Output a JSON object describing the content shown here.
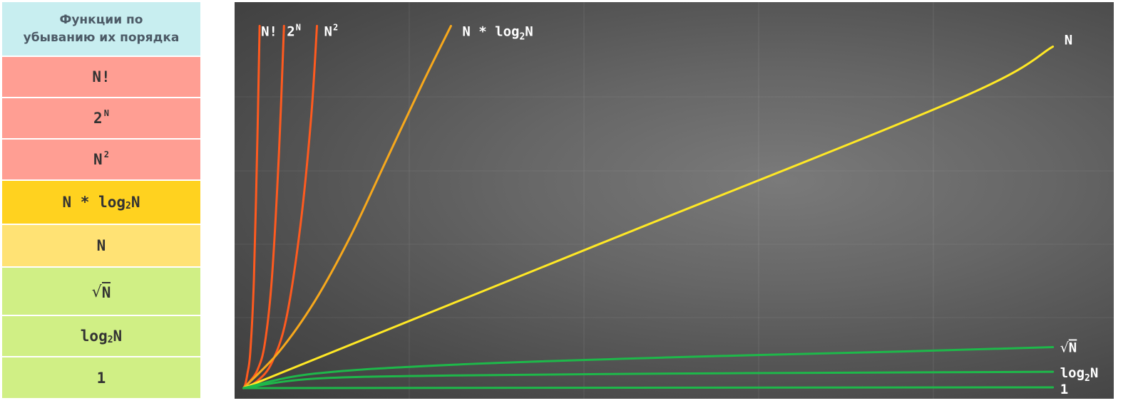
{
  "table": {
    "header": [
      "Функции по",
      "убыванию их порядка"
    ],
    "rows": [
      {
        "base": "N!",
        "sup": "",
        "sub": "",
        "tail": ""
      },
      {
        "base": "2",
        "sup": "N",
        "sub": "",
        "tail": ""
      },
      {
        "base": "N",
        "sup": "2",
        "sub": "",
        "tail": ""
      },
      {
        "base": "N * log",
        "sup": "",
        "sub": "2",
        "tail": "N"
      },
      {
        "base": "N",
        "sup": "",
        "sub": "",
        "tail": ""
      },
      {
        "base": "N",
        "sup": "",
        "sub": "",
        "tail": "",
        "sqrt": true
      },
      {
        "base": "log",
        "sup": "",
        "sub": "2",
        "tail": "N"
      },
      {
        "base": "1",
        "sup": "",
        "sub": "",
        "tail": ""
      }
    ]
  },
  "chart_data": {
    "type": "line",
    "title": "",
    "xlabel": "",
    "ylabel": "",
    "grid": true,
    "series": [
      {
        "name": "N!",
        "color": "#ff5a1f",
        "points": [
          [
            0.05,
            0.0
          ],
          [
            0.3,
            0.01
          ],
          [
            0.6,
            0.04
          ],
          [
            1.0,
            0.1
          ],
          [
            1.5,
            0.3
          ],
          [
            2.0,
            0.7
          ],
          [
            2.3,
            1.0
          ]
        ]
      },
      {
        "name": "2^N",
        "color": "#ff5a1f",
        "points": [
          [
            0.05,
            0.0
          ],
          [
            1.0,
            0.02
          ],
          [
            2.0,
            0.05
          ],
          [
            3.0,
            0.12
          ],
          [
            4.0,
            0.3
          ],
          [
            5.0,
            0.65
          ],
          [
            5.7,
            1.0
          ]
        ]
      },
      {
        "name": "N^2",
        "color": "#ff5a1f",
        "points": [
          [
            0.05,
            0.0
          ],
          [
            2.0,
            0.02
          ],
          [
            4.0,
            0.07
          ],
          [
            6.0,
            0.19
          ],
          [
            8.0,
            0.45
          ],
          [
            9.5,
            0.75
          ],
          [
            10.3,
            1.0
          ]
        ]
      },
      {
        "name": "N * log2N",
        "color": "#f7a81c",
        "points": [
          [
            0.05,
            0.0
          ],
          [
            5.0,
            0.1
          ],
          [
            10.0,
            0.24
          ],
          [
            15.0,
            0.42
          ],
          [
            20.0,
            0.63
          ],
          [
            25.0,
            0.84
          ],
          [
            29.0,
            1.0
          ]
        ]
      },
      {
        "name": "N",
        "color": "#ffe825",
        "points": [
          [
            0.05,
            0.0
          ],
          [
            50.0,
            0.4
          ],
          [
            100.0,
            0.8
          ],
          [
            113.0,
            0.943
          ]
        ]
      },
      {
        "name": "sqrtN",
        "color": "#1eb84a",
        "points": [
          [
            0.05,
            0.0
          ],
          [
            10.0,
            0.04
          ],
          [
            30.0,
            0.065
          ],
          [
            60.0,
            0.085
          ],
          [
            90.0,
            0.1
          ],
          [
            113.0,
            0.113
          ]
        ]
      },
      {
        "name": "log2N",
        "color": "#1eb84a",
        "points": [
          [
            0.05,
            0.0
          ],
          [
            10.0,
            0.026
          ],
          [
            30.0,
            0.035
          ],
          [
            60.0,
            0.04
          ],
          [
            90.0,
            0.043
          ],
          [
            113.0,
            0.045
          ]
        ]
      },
      {
        "name": "1",
        "color": "#1eb84a",
        "points": [
          [
            0.05,
            0.0
          ],
          [
            113.0,
            0.002
          ]
        ]
      }
    ],
    "labels": [
      {
        "series": "N!",
        "base": "N!",
        "sup": "",
        "sub": "",
        "tail": ""
      },
      {
        "series": "2^N",
        "base": "2",
        "sup": "N",
        "sub": "",
        "tail": ""
      },
      {
        "series": "N^2",
        "base": "N",
        "sup": "2",
        "sub": "",
        "tail": ""
      },
      {
        "series": "N * log2N",
        "base": "N * log",
        "sup": "",
        "sub": "2",
        "tail": "N"
      },
      {
        "series": "N",
        "base": "N",
        "sup": "",
        "sub": "",
        "tail": ""
      },
      {
        "series": "sqrtN",
        "base": "N",
        "sup": "",
        "sub": "",
        "tail": "",
        "sqrt": true
      },
      {
        "series": "log2N",
        "base": "log",
        "sup": "",
        "sub": "2",
        "tail": "N"
      },
      {
        "series": "1",
        "base": "1",
        "sup": "",
        "sub": "",
        "tail": ""
      }
    ],
    "xlim": [
      0,
      120
    ],
    "ylim": [
      0,
      1.05
    ]
  }
}
